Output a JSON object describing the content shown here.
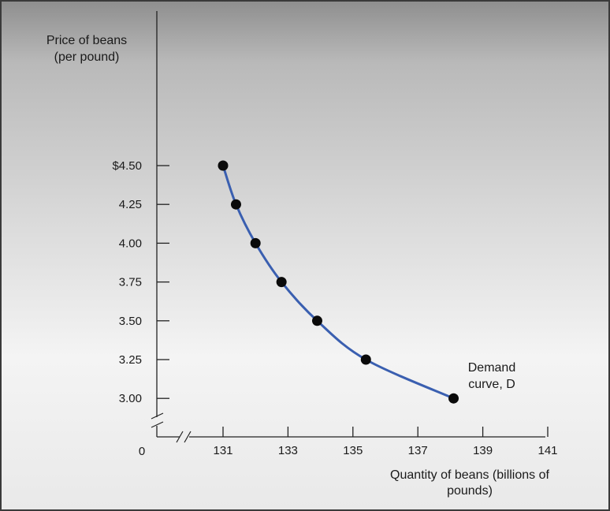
{
  "chart_data": {
    "type": "line",
    "ylabel_lines": [
      "Price of beans",
      "(per pound)"
    ],
    "xlabel_lines": [
      "Quantity of beans (billions of",
      "pounds)"
    ],
    "origin_label": "0",
    "x_ticks": [
      131,
      133,
      135,
      137,
      139,
      141
    ],
    "x_tick_labels": [
      "131",
      "133",
      "135",
      "137",
      "139",
      "141"
    ],
    "y_ticks": [
      4.5,
      4.25,
      4.0,
      3.75,
      3.5,
      3.25,
      3.0
    ],
    "y_tick_labels": [
      "$4.50",
      "4.25",
      "4.00",
      "3.75",
      "3.50",
      "3.25",
      "3.00"
    ],
    "xlim": [
      131,
      141
    ],
    "ylim": [
      3.0,
      4.5
    ],
    "axis_breaks": true,
    "grid": false,
    "series": [
      {
        "name": "Demand curve, D",
        "color": "#3a5fb0",
        "points": [
          {
            "x": 131.0,
            "y": 4.5
          },
          {
            "x": 131.4,
            "y": 4.25
          },
          {
            "x": 132.0,
            "y": 4.0
          },
          {
            "x": 132.8,
            "y": 3.75
          },
          {
            "x": 133.9,
            "y": 3.5
          },
          {
            "x": 135.4,
            "y": 3.25
          },
          {
            "x": 138.1,
            "y": 3.0
          }
        ]
      }
    ],
    "annotation_lines": [
      "Demand",
      "curve, D"
    ]
  }
}
